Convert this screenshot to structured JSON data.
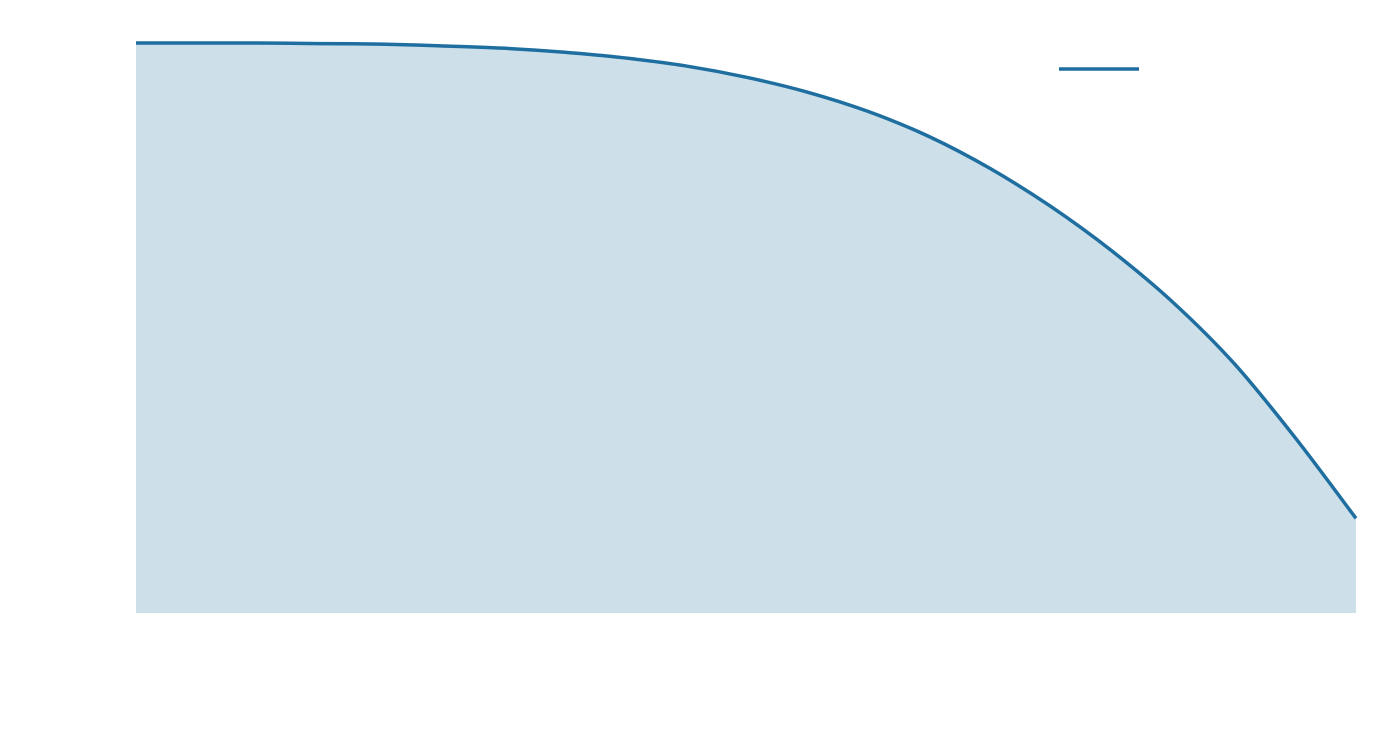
{
  "chart_data": {
    "type": "area",
    "title": "",
    "xlabel": "",
    "ylabel": "",
    "xlim": [
      0,
      1
    ],
    "ylim": [
      0,
      1
    ],
    "grid": false,
    "legend": {
      "position": "top-right",
      "entries": [
        ""
      ]
    },
    "series": [
      {
        "x": [
          0.0,
          0.05,
          0.1,
          0.15,
          0.2,
          0.25,
          0.3,
          0.35,
          0.4,
          0.45,
          0.5,
          0.55,
          0.6,
          0.65,
          0.7,
          0.75,
          0.8,
          0.85,
          0.9,
          0.95,
          1.0
        ],
        "y": [
          1.0,
          1.0,
          1.0,
          0.999,
          0.998,
          0.995,
          0.991,
          0.984,
          0.974,
          0.96,
          0.94,
          0.914,
          0.88,
          0.836,
          0.78,
          0.713,
          0.635,
          0.545,
          0.438,
          0.308,
          0.166
        ]
      }
    ]
  },
  "colors": {
    "line": "#1f6ea0",
    "fill": "#cde0ea",
    "background": "#ffffff"
  }
}
